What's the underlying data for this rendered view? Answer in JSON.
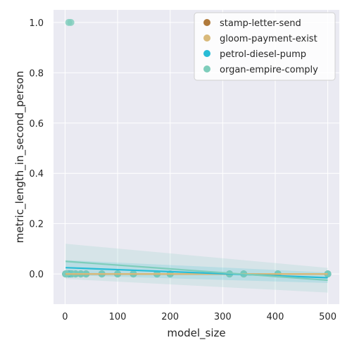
{
  "chart_data": {
    "type": "scatter",
    "title": "",
    "xlabel": "model_size",
    "ylabel": "metric_length_in_second_person",
    "xlim": [
      -22,
      522
    ],
    "ylim": [
      -0.12,
      1.05
    ],
    "xticks": [
      0,
      100,
      200,
      300,
      400,
      500
    ],
    "yticks": [
      0.0,
      0.2,
      0.4,
      0.6,
      0.8,
      1.0
    ],
    "xtick_labels": [
      "0",
      "100",
      "200",
      "300",
      "400",
      "500"
    ],
    "ytick_labels": [
      "0.0",
      "0.2",
      "0.4",
      "0.6",
      "0.8",
      "1.0"
    ],
    "grid": true,
    "legend_position": "top-right",
    "series": [
      {
        "name": "stamp-letter-send",
        "color": "#b07a3b",
        "x": [
          1,
          3,
          7,
          11,
          13,
          20,
          30,
          40,
          70,
          100,
          130,
          175,
          200,
          313,
          340,
          405,
          500
        ],
        "y": [
          0,
          0,
          0,
          0,
          0,
          0,
          0,
          0,
          0,
          0,
          0,
          0,
          0,
          0,
          0,
          0,
          0
        ],
        "fit": {
          "y_start": 0.0,
          "y_end": 0.0,
          "band": 0.004
        }
      },
      {
        "name": "gloom-payment-exist",
        "color": "#d9b97a",
        "x": [
          1,
          3,
          7,
          11,
          13,
          20,
          30,
          40,
          70,
          100,
          130,
          175,
          200,
          313,
          340,
          405,
          500
        ],
        "y": [
          0,
          0,
          0,
          0,
          0,
          0,
          0,
          0,
          0,
          0,
          0,
          0,
          0,
          0,
          0,
          0,
          0
        ],
        "fit": {
          "y_start": 0.0,
          "y_end": 0.0,
          "band": 0.004
        }
      },
      {
        "name": "petrol-diesel-pump",
        "color": "#29bcd6",
        "x": [
          1,
          3,
          7,
          11,
          13,
          20,
          30,
          40,
          70,
          100,
          130,
          175,
          200,
          313,
          340,
          405,
          500
        ],
        "y": [
          0,
          0,
          0,
          0,
          0,
          0,
          0,
          0,
          0,
          0,
          0,
          0,
          0,
          0,
          0,
          0,
          0
        ],
        "fit": {
          "y_start": 0.025,
          "y_end": -0.015,
          "band": 0.03
        }
      },
      {
        "name": "organ-empire-comply",
        "color": "#7ecdbb",
        "x": [
          7,
          11,
          1,
          3,
          13,
          20,
          30,
          40,
          70,
          100,
          130,
          175,
          200,
          313,
          340,
          405,
          500
        ],
        "y": [
          1,
          1,
          0,
          0,
          0,
          0,
          0,
          0,
          0,
          0,
          0,
          0,
          0,
          0,
          0,
          0,
          0
        ],
        "fit": {
          "y_start": 0.05,
          "y_end": -0.025,
          "band": 0.07
        }
      }
    ]
  }
}
